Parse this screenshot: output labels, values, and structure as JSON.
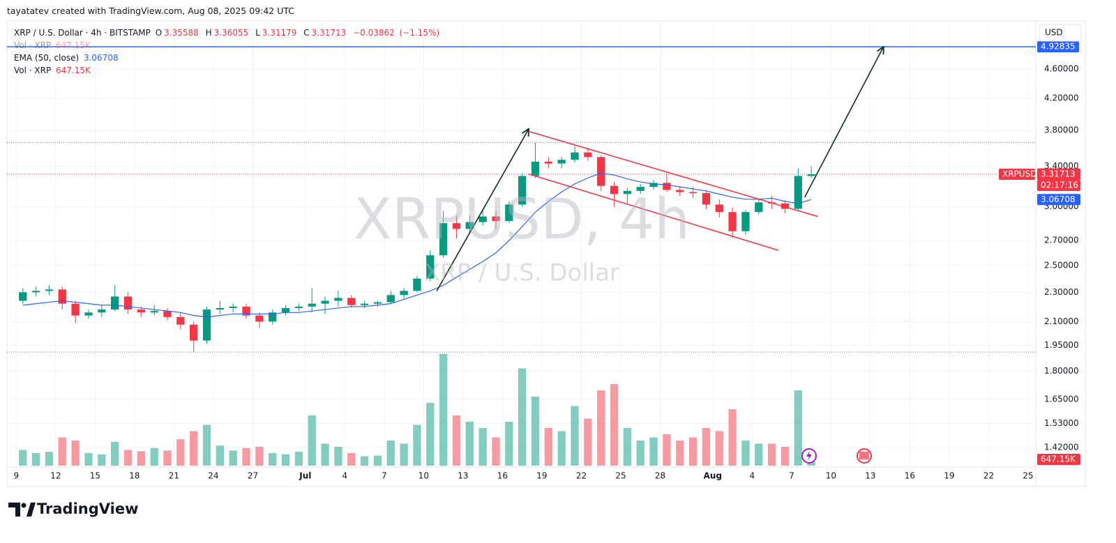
{
  "attribution": "tayatatev created with TradingView.com, Aug 08, 2025 09:42 UTC",
  "logo": "TradingView",
  "chart_data": {
    "type": "candlestick",
    "title": "XRP / U.S. Dollar · 4h · BITSTAMP",
    "ohlc_legend": [
      {
        "label": "O",
        "value": 3.35588
      },
      {
        "label": "H",
        "value": 3.36055
      },
      {
        "label": "L",
        "value": 3.31179
      },
      {
        "label": "C",
        "value": 3.31713
      }
    ],
    "change": {
      "value": -0.03862,
      "label": "−0.03862"
    },
    "change_percent": {
      "value": -1.15,
      "label": "(−1.15%)"
    },
    "watermark": "XRPUSD, 4h",
    "watermark_subtitle": "XRP / U.S. Dollar",
    "currency": "USD",
    "symbol": "XRPUSD",
    "countdown": "02:17:16",
    "up_color": "#089981",
    "down_color": "#f23645",
    "x": [
      "2025-06-09",
      "2025-06-10",
      "2025-06-11",
      "2025-06-12",
      "2025-06-13",
      "2025-06-14",
      "2025-06-15",
      "2025-06-16",
      "2025-06-17",
      "2025-06-18",
      "2025-06-19",
      "2025-06-20",
      "2025-06-21",
      "2025-06-22",
      "2025-06-23",
      "2025-06-24",
      "2025-06-25",
      "2025-06-26",
      "2025-06-27",
      "2025-06-28",
      "2025-06-29",
      "2025-06-30",
      "2025-07-01",
      "2025-07-02",
      "2025-07-03",
      "2025-07-04",
      "2025-07-05",
      "2025-07-06",
      "2025-07-07",
      "2025-07-08",
      "2025-07-09",
      "2025-07-10",
      "2025-07-11",
      "2025-07-12",
      "2025-07-13",
      "2025-07-14",
      "2025-07-15",
      "2025-07-16",
      "2025-07-17",
      "2025-07-18",
      "2025-07-19",
      "2025-07-20",
      "2025-07-21",
      "2025-07-22",
      "2025-07-23",
      "2025-07-24",
      "2025-07-25",
      "2025-07-26",
      "2025-07-27",
      "2025-07-28",
      "2025-07-29",
      "2025-07-30",
      "2025-07-31",
      "2025-08-01",
      "2025-08-02",
      "2025-08-03",
      "2025-08-04",
      "2025-08-05",
      "2025-08-06",
      "2025-08-07",
      "2025-08-08"
    ],
    "open": [
      2.24,
      2.3,
      2.31,
      2.32,
      2.22,
      2.14,
      2.16,
      2.18,
      2.27,
      2.18,
      2.16,
      2.17,
      2.13,
      2.08,
      1.98,
      2.18,
      2.19,
      2.2,
      2.14,
      2.1,
      2.16,
      2.19,
      2.2,
      2.22,
      2.24,
      2.26,
      2.21,
      2.22,
      2.23,
      2.28,
      2.31,
      2.4,
      2.58,
      2.85,
      2.8,
      2.86,
      2.91,
      2.87,
      3.02,
      3.3,
      3.45,
      3.43,
      3.47,
      3.55,
      3.5,
      3.2,
      3.12,
      3.15,
      3.19,
      3.23,
      3.16,
      3.14,
      3.13,
      3.02,
      2.95,
      2.78,
      2.95,
      3.04,
      3.03,
      2.98,
      3.3
    ],
    "high": [
      2.33,
      2.34,
      2.35,
      2.34,
      2.24,
      2.18,
      2.21,
      2.35,
      2.3,
      2.2,
      2.21,
      2.19,
      2.16,
      2.1,
      2.2,
      2.24,
      2.22,
      2.22,
      2.16,
      2.18,
      2.21,
      2.22,
      2.33,
      2.27,
      2.31,
      2.28,
      2.24,
      2.24,
      2.31,
      2.33,
      2.42,
      2.62,
      2.96,
      2.92,
      2.92,
      2.98,
      2.96,
      3.05,
      3.33,
      3.66,
      3.5,
      3.5,
      3.62,
      3.6,
      3.52,
      3.24,
      3.18,
      3.22,
      3.26,
      3.33,
      3.2,
      3.19,
      3.16,
      3.07,
      2.99,
      2.97,
      3.07,
      3.1,
      3.06,
      3.38,
      3.4
    ],
    "low": [
      2.22,
      2.27,
      2.28,
      2.18,
      2.09,
      2.12,
      2.13,
      2.17,
      2.15,
      2.13,
      2.14,
      2.11,
      2.05,
      1.91,
      1.96,
      2.15,
      2.16,
      2.12,
      2.06,
      2.08,
      2.14,
      2.17,
      2.16,
      2.15,
      2.2,
      2.19,
      2.19,
      2.2,
      2.22,
      2.25,
      2.3,
      2.38,
      2.56,
      2.72,
      2.76,
      2.83,
      2.8,
      2.85,
      3.0,
      3.28,
      3.38,
      3.38,
      3.44,
      3.46,
      3.15,
      3.0,
      3.03,
      3.12,
      3.16,
      3.14,
      3.1,
      3.08,
      2.98,
      2.9,
      2.72,
      2.75,
      2.93,
      2.98,
      2.94,
      2.96,
      3.28
    ],
    "close": [
      2.3,
      2.31,
      2.32,
      2.22,
      2.14,
      2.16,
      2.18,
      2.27,
      2.18,
      2.16,
      2.17,
      2.13,
      2.08,
      1.98,
      2.18,
      2.19,
      2.2,
      2.14,
      2.1,
      2.16,
      2.19,
      2.2,
      2.22,
      2.24,
      2.26,
      2.21,
      2.22,
      2.23,
      2.28,
      2.31,
      2.4,
      2.58,
      2.85,
      2.8,
      2.86,
      2.91,
      2.87,
      3.02,
      3.3,
      3.45,
      3.43,
      3.47,
      3.55,
      3.5,
      3.2,
      3.12,
      3.15,
      3.19,
      3.23,
      3.16,
      3.14,
      3.13,
      3.02,
      2.95,
      2.78,
      2.95,
      3.04,
      3.03,
      2.98,
      3.3,
      3.31713
    ],
    "ema": {
      "name": "EMA (50, close)",
      "color": "#2962ff",
      "values": [
        2.21,
        2.22,
        2.23,
        2.24,
        2.23,
        2.22,
        2.21,
        2.21,
        2.2,
        2.19,
        2.18,
        2.17,
        2.16,
        2.14,
        2.13,
        2.14,
        2.15,
        2.15,
        2.15,
        2.15,
        2.16,
        2.16,
        2.17,
        2.18,
        2.19,
        2.2,
        2.2,
        2.21,
        2.22,
        2.25,
        2.28,
        2.31,
        2.35,
        2.41,
        2.47,
        2.53,
        2.6,
        2.7,
        2.82,
        2.95,
        3.05,
        3.14,
        3.22,
        3.28,
        3.33,
        3.31,
        3.27,
        3.24,
        3.22,
        3.21,
        3.19,
        3.17,
        3.15,
        3.12,
        3.09,
        3.07,
        3.07,
        3.08,
        3.05,
        3.03,
        3.06708
      ]
    },
    "volume": {
      "name": "Vol · XRP",
      "values": [
        2500000,
        2000000,
        2200000,
        4500000,
        4000000,
        2000000,
        1800000,
        3800000,
        2500000,
        2300000,
        2800000,
        2400000,
        4200000,
        5500000,
        6500000,
        3200000,
        2400000,
        2800000,
        3000000,
        2000000,
        1800000,
        2200000,
        8000000,
        3500000,
        3000000,
        2000000,
        1500000,
        1600000,
        4000000,
        3500000,
        6500000,
        10000000,
        17800000,
        8000000,
        7000000,
        6000000,
        4500000,
        7000000,
        15500000,
        11000000,
        6000000,
        5500000,
        9500000,
        7500000,
        12000000,
        13000000,
        6000000,
        4000000,
        4500000,
        5000000,
        4000000,
        4500000,
        6000000,
        5500000,
        9000000,
        4000000,
        3500000,
        3500000,
        3000000,
        12000000,
        647150
      ],
      "value_labels": [
        null,
        null,
        null,
        null,
        null,
        null,
        null,
        null,
        null,
        null,
        null,
        null,
        null,
        null,
        null,
        null,
        null,
        null,
        null,
        null,
        null,
        null,
        null,
        null,
        null,
        null,
        null,
        null,
        null,
        null,
        null,
        null,
        null,
        null,
        null,
        null,
        null,
        null,
        null,
        null,
        null,
        null,
        null,
        null,
        null,
        null,
        null,
        null,
        null,
        null,
        null,
        null,
        null,
        null,
        null,
        null,
        null,
        null,
        null,
        null,
        "647.15K"
      ]
    },
    "vlim": [
      0,
      20000000
    ],
    "log": true,
    "grid": true,
    "xlim": [
      "2025-06-08T07:00",
      "2025-08-25T14:00"
    ],
    "xticks": [
      {
        "value": "2025-06-09",
        "label": "9"
      },
      {
        "value": "2025-06-12",
        "label": "12"
      },
      {
        "value": "2025-06-15",
        "label": "15"
      },
      {
        "value": "2025-06-18",
        "label": "18"
      },
      {
        "value": "2025-06-21",
        "label": "21"
      },
      {
        "value": "2025-06-24",
        "label": "24"
      },
      {
        "value": "2025-06-27",
        "label": "27"
      },
      {
        "value": "2025-07-01",
        "label": "Jul"
      },
      {
        "value": "2025-07-04",
        "label": "4"
      },
      {
        "value": "2025-07-07",
        "label": "7"
      },
      {
        "value": "2025-07-10",
        "label": "10"
      },
      {
        "value": "2025-07-13",
        "label": "13"
      },
      {
        "value": "2025-07-16",
        "label": "16"
      },
      {
        "value": "2025-07-19",
        "label": "19"
      },
      {
        "value": "2025-07-22",
        "label": "22"
      },
      {
        "value": "2025-07-25",
        "label": "25"
      },
      {
        "value": "2025-07-28",
        "label": "28"
      },
      {
        "value": "2025-08-01",
        "label": "Aug"
      },
      {
        "value": "2025-08-04",
        "label": "4"
      },
      {
        "value": "2025-08-07",
        "label": "7"
      },
      {
        "value": "2025-08-10",
        "label": "10"
      },
      {
        "value": "2025-08-13",
        "label": "13"
      },
      {
        "value": "2025-08-16",
        "label": "16"
      },
      {
        "value": "2025-08-19",
        "label": "19"
      },
      {
        "value": "2025-08-22",
        "label": "22"
      },
      {
        "value": "2025-08-25",
        "label": "25"
      }
    ],
    "ylim": [
      1.337,
      5.34
    ],
    "yticks": [
      {
        "value": 1.42,
        "label": "1.42000"
      },
      {
        "value": 1.53,
        "label": "1.53000"
      },
      {
        "value": 1.65,
        "label": "1.65000"
      },
      {
        "value": 1.8,
        "label": "1.80000"
      },
      {
        "value": 1.95,
        "label": "1.95000"
      },
      {
        "value": 2.1,
        "label": "2.10000"
      },
      {
        "value": 2.3,
        "label": "2.30000"
      },
      {
        "value": 2.5,
        "label": "2.50000"
      },
      {
        "value": 2.7,
        "label": "2.70000"
      },
      {
        "value": 3.0,
        "label": "3.00000"
      },
      {
        "value": 3.4,
        "label": "3.40000"
      },
      {
        "value": 3.8,
        "label": "3.80000"
      },
      {
        "value": 4.2,
        "label": "4.20000"
      },
      {
        "value": 4.6,
        "label": "4.60000"
      }
    ],
    "range_levels": [
      3.66,
      1.91
    ],
    "horizontal_line": {
      "value": 4.92835,
      "color": "#2962ff"
    },
    "drawings": [
      {
        "x": [
          "2025-07-11",
          "2025-07-18"
        ],
        "y": [
          2.31,
          3.82
        ],
        "color": "#0b2e1f",
        "arrow": true
      },
      {
        "x": [
          "2025-08-08",
          "2025-08-14"
        ],
        "y": [
          3.09,
          4.93
        ],
        "color": "#0b2e1f",
        "arrow": true
      },
      {
        "x": [
          "2025-07-18",
          "2025-08-09"
        ],
        "y": [
          3.79,
          2.91
        ],
        "color": "#f23645",
        "arrow": false
      },
      {
        "x": [
          "2025-07-18",
          "2025-08-06"
        ],
        "y": [
          3.32,
          2.62
        ],
        "color": "#f23645",
        "arrow": false
      }
    ]
  }
}
